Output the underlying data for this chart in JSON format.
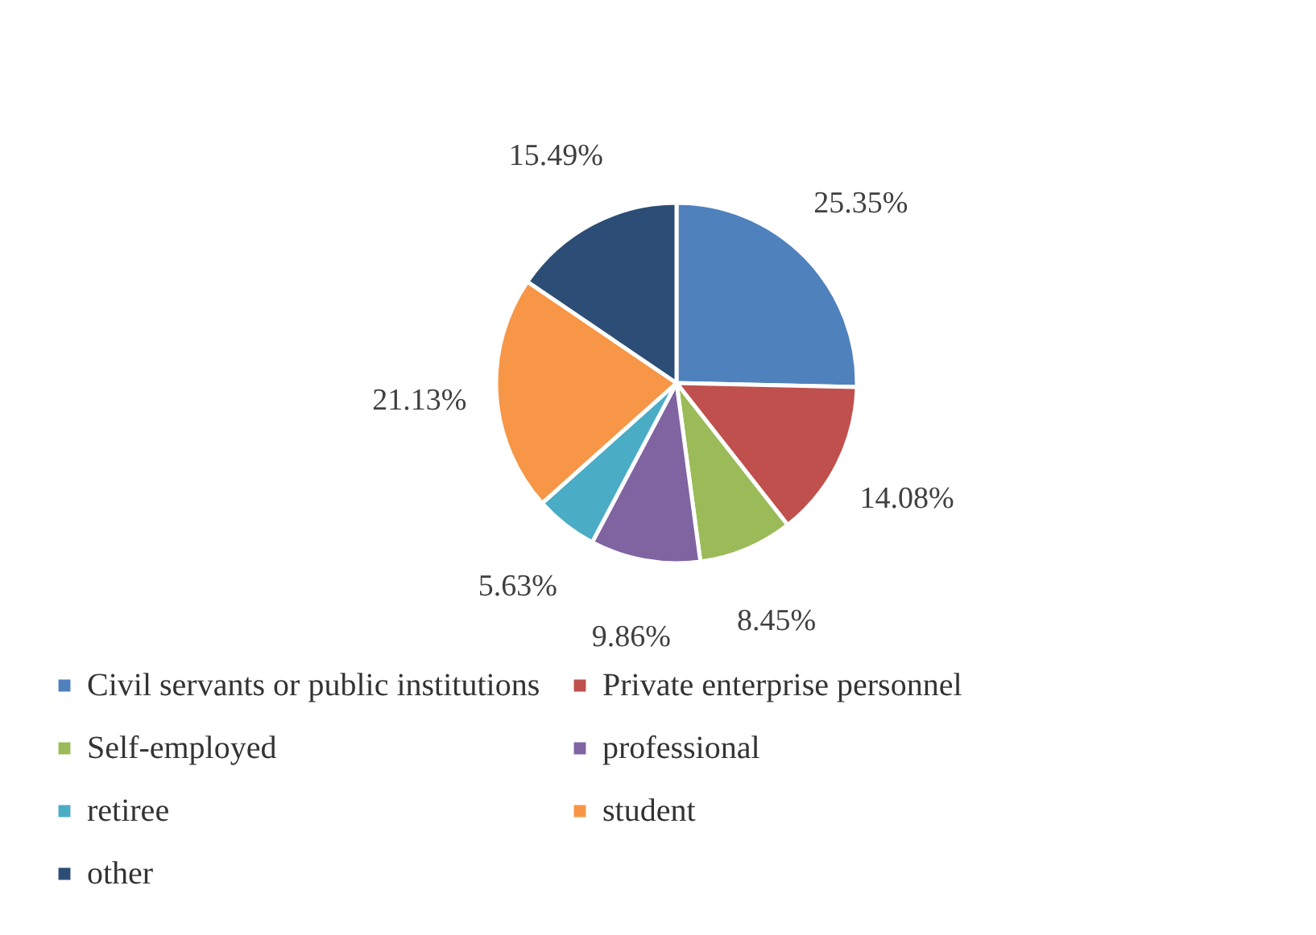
{
  "chart_data": {
    "type": "pie",
    "categories": [
      "Civil servants or public institutions",
      "Private enterprise personnel",
      "Self-employed",
      "professional",
      "retiree",
      "student",
      "other"
    ],
    "values": [
      25.35,
      14.08,
      8.45,
      9.86,
      5.63,
      21.13,
      15.49
    ],
    "colors": [
      "#4f81bd",
      "#c0504d",
      "#9bbb59",
      "#8064a2",
      "#4bacc6",
      "#f79646",
      "#2c4d75"
    ],
    "value_labels": [
      "25.35%",
      "14.08%",
      "8.45%",
      "9.86%",
      "5.63%",
      "21.13%",
      "15.49%"
    ],
    "legend": "bottom"
  }
}
